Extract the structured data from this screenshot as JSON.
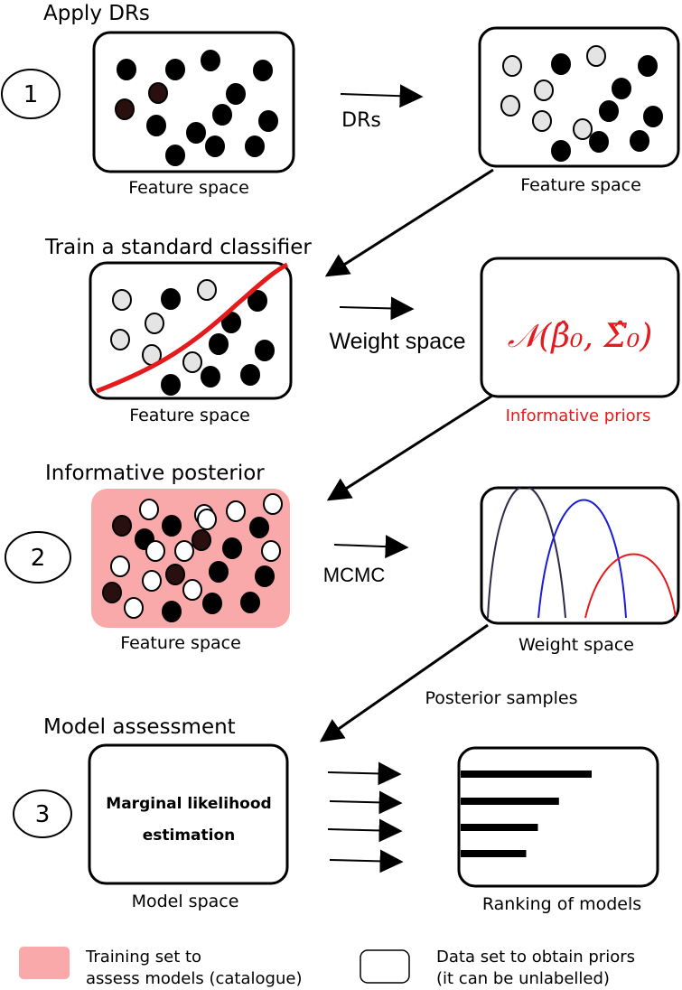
{
  "steps": {
    "s1": {
      "number": "1",
      "title": "Apply DRs",
      "arrow_label": "DRs",
      "left_caption": "Feature space",
      "right_caption": "Feature space"
    },
    "s1b": {
      "title": "Train a standard classifier",
      "arrow_label": "Weight space",
      "left_caption": "Feature space",
      "right_caption": "Informative priors",
      "prior_formula": "𝒩(β̂₀, Σ̂₀)"
    },
    "s2": {
      "number": "2",
      "title": "Informative posterior",
      "arrow_label": "MCMC",
      "left_caption": "Feature space",
      "right_caption": "Weight space",
      "between_label": "Posterior samples"
    },
    "s3": {
      "number": "3",
      "title": "Model assessment",
      "box_line1": "Marginal likelihood",
      "box_line2": "estimation",
      "left_caption": "Model space",
      "right_caption": "Ranking of models",
      "ranking_values": [
        1.0,
        0.75,
        0.59,
        0.5
      ]
    }
  },
  "legend": {
    "pink_line1": "Training set to",
    "pink_line2": "assess models (catalogue)",
    "white_line1": "Data set to obtain priors",
    "white_line2": "(it can be unlabelled)"
  },
  "colors": {
    "pink": "#f9a9a9",
    "red": "#e41a1c",
    "navy": "#2b2b4a",
    "blue": "#1a1ae0",
    "light_gray": "#e4e4e4"
  }
}
